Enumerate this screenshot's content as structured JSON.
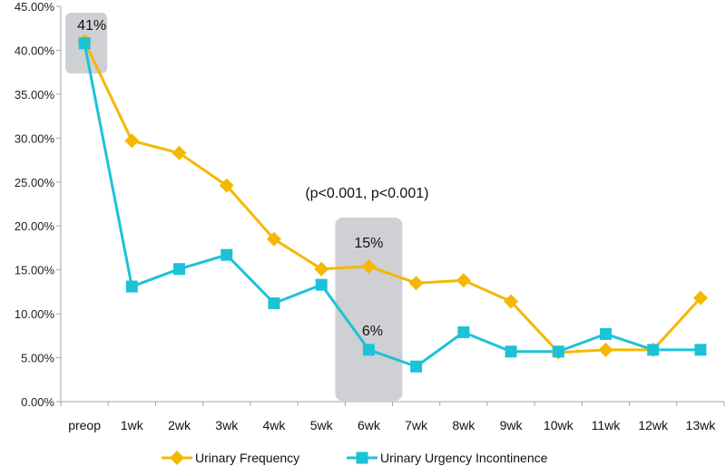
{
  "chart_data": {
    "type": "line",
    "categories": [
      "preop",
      "1wk",
      "2wk",
      "3wk",
      "4wk",
      "5wk",
      "6wk",
      "7wk",
      "8wk",
      "9wk",
      "10wk",
      "11wk",
      "12wk",
      "13wk"
    ],
    "y_ticks": [
      "0.00%",
      "5.00%",
      "10.00%",
      "15.00%",
      "20.00%",
      "25.00%",
      "30.00%",
      "35.00%",
      "40.00%",
      "45.00%"
    ],
    "ylim": [
      0,
      45
    ],
    "series": [
      {
        "name": "Urinary Frequency",
        "color": "#F5B800",
        "marker": "diamond",
        "values": [
          41.0,
          29.7,
          28.3,
          24.6,
          18.5,
          15.1,
          15.4,
          13.5,
          13.8,
          11.4,
          5.6,
          5.9,
          5.9,
          11.8
        ]
      },
      {
        "name": "Urinary Urgency Incontinence",
        "color": "#1CC2D6",
        "marker": "square",
        "values": [
          40.8,
          13.1,
          15.1,
          16.7,
          11.2,
          13.3,
          5.9,
          4.0,
          7.9,
          5.7,
          5.7,
          7.7,
          5.9,
          5.9
        ]
      }
    ],
    "annotations": [
      {
        "text": "41%",
        "category": "preop"
      },
      {
        "text": "15%",
        "category": "6wk"
      },
      {
        "text": "6%",
        "category": "6wk"
      },
      {
        "text": "(p<0.001, p<0.001)",
        "category": "6wk"
      }
    ],
    "legend_position": "bottom",
    "grid": false
  }
}
